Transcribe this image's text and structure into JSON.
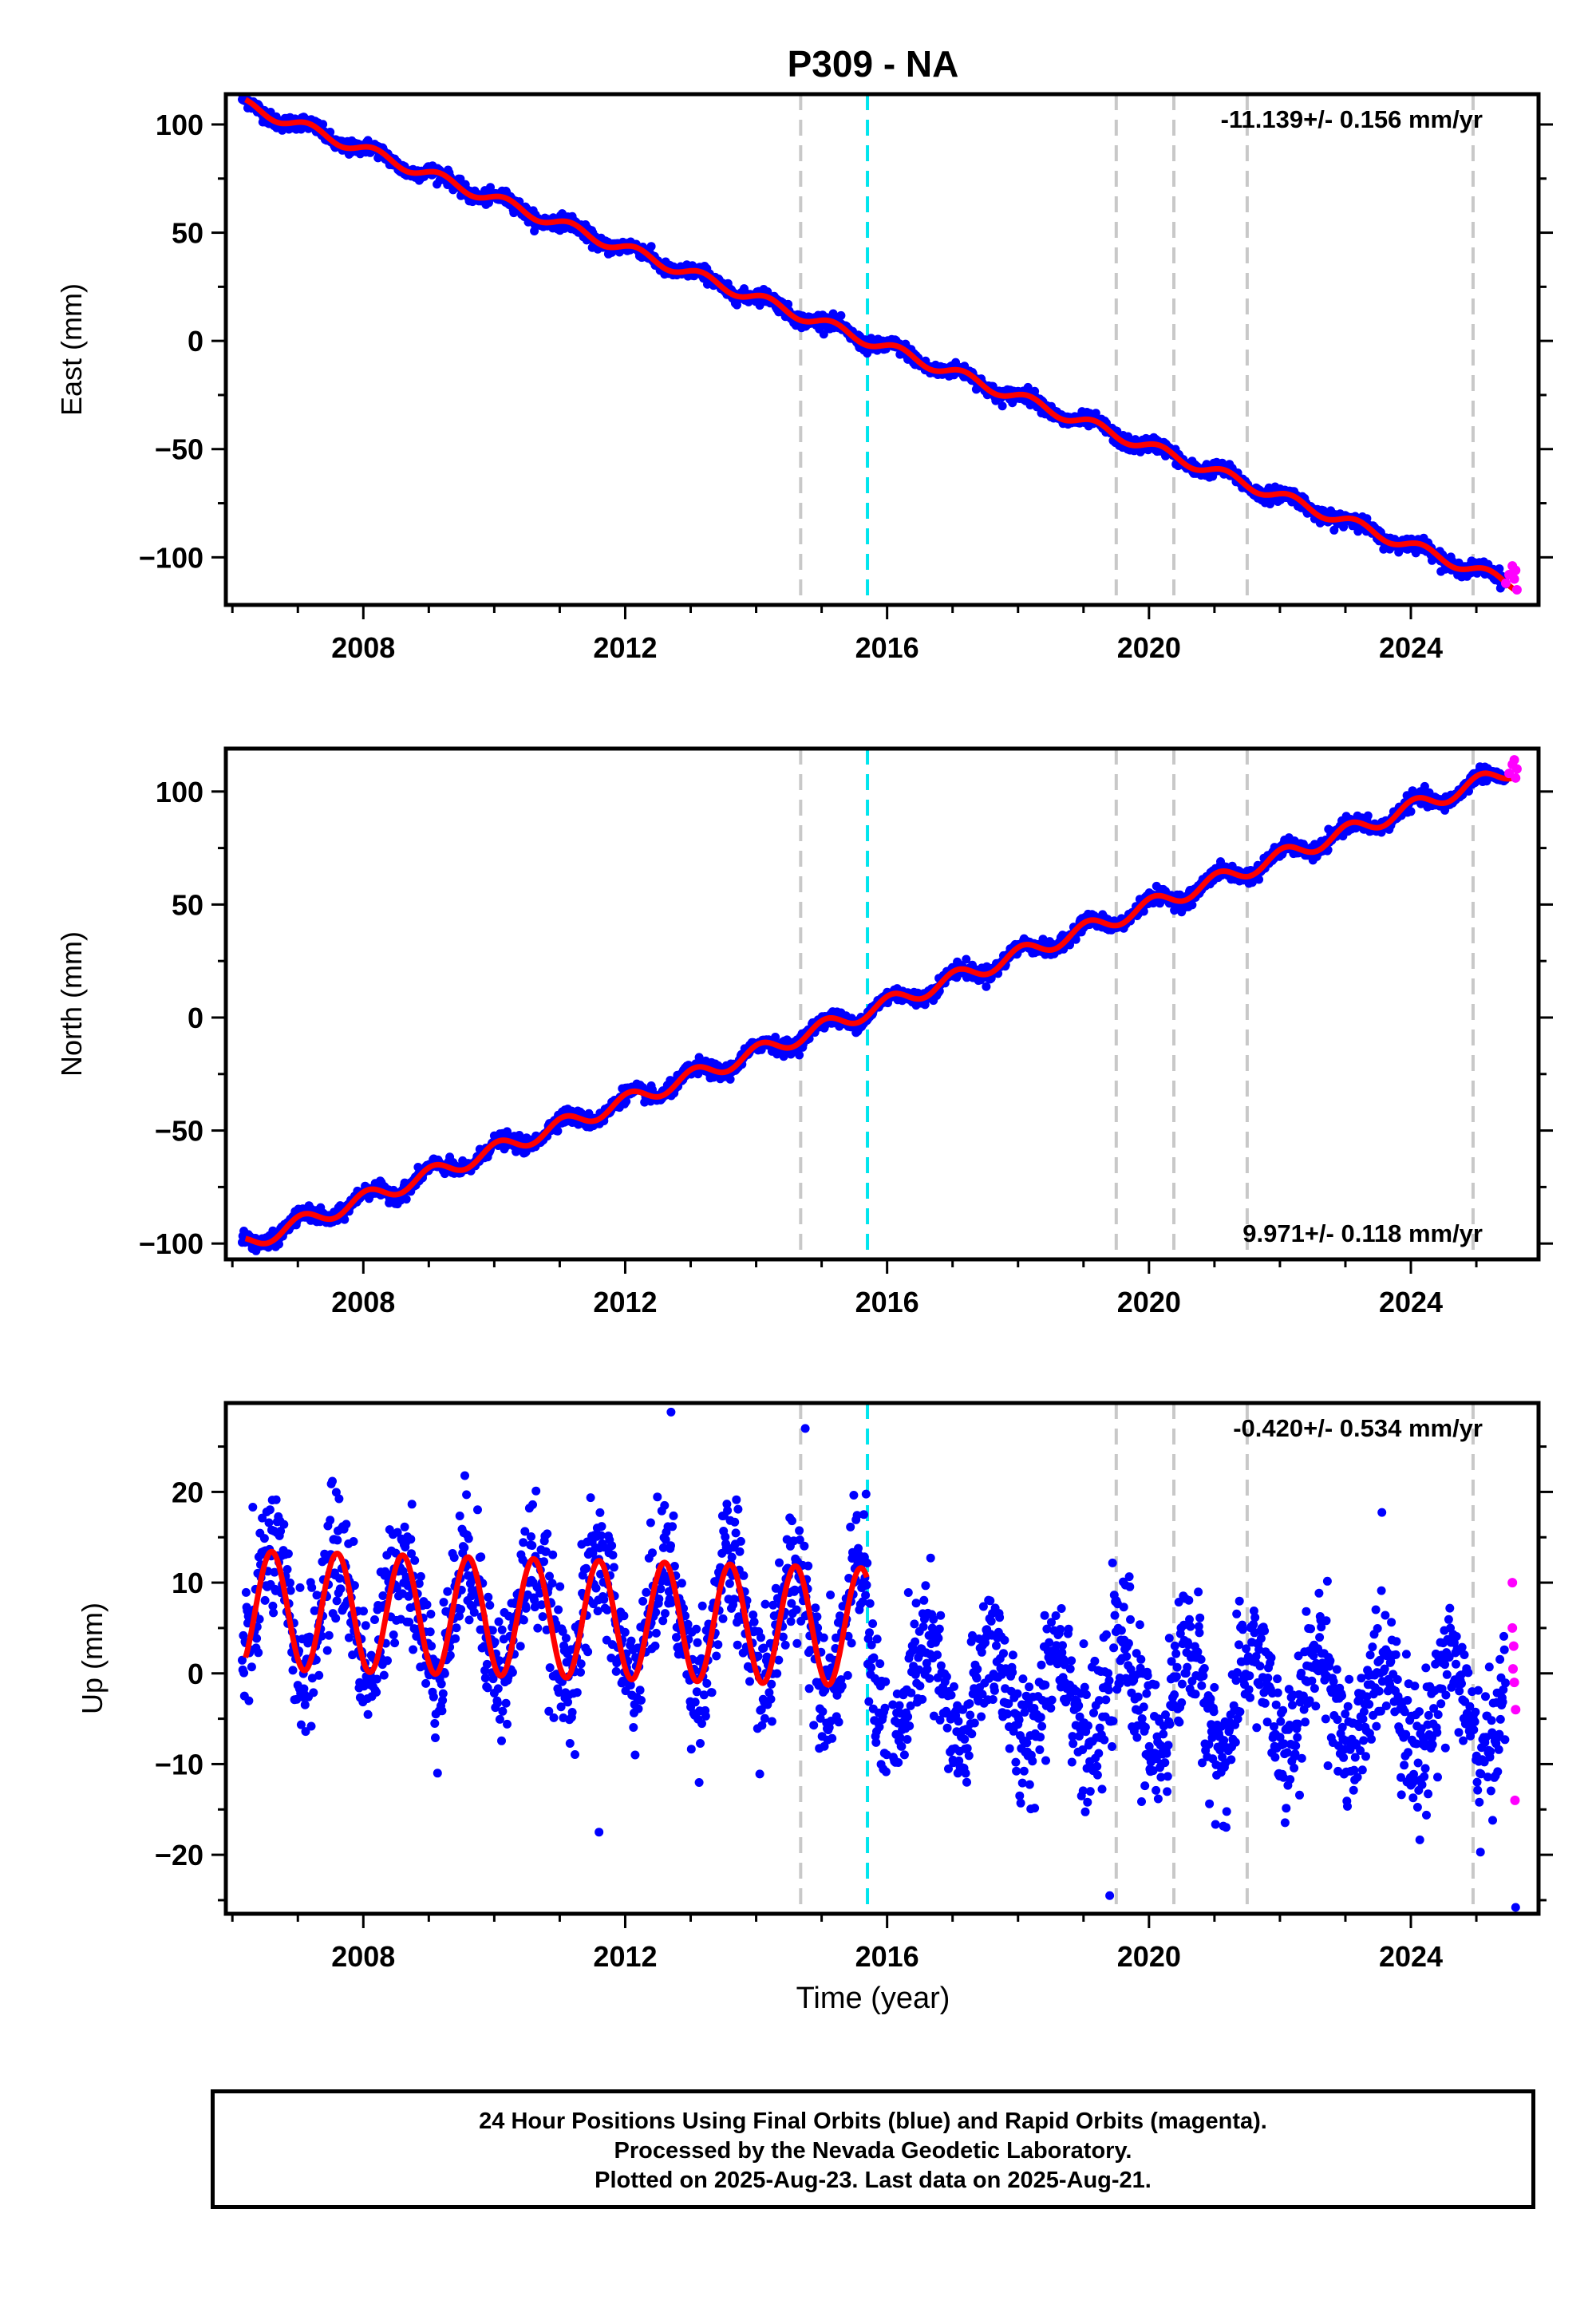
{
  "title": "P309 - NA",
  "x_axis_label": "Time (year)",
  "x_ticks": [
    2008,
    2012,
    2016,
    2020,
    2024
  ],
  "footer": {
    "line1": "24 Hour Positions Using Final Orbits (blue) and Rapid Orbits (magenta).",
    "line2": "Processed by the Nevada Geodetic Laboratory.",
    "line3": "Plotted on 2025-Aug-23. Last data on 2025-Aug-21."
  },
  "colors": {
    "final_orbits": "#0000ff",
    "rapid_orbits": "#ff00ff",
    "model_fit": "#ff0000",
    "equipment_change": "#c8c8c8",
    "earthquake": "#00e5ee"
  },
  "event_lines": {
    "equipment_change_years": [
      2014.68,
      2019.5,
      2020.38,
      2021.5,
      2024.95
    ],
    "earthquake_years": [
      2015.7
    ]
  },
  "chart_data": [
    {
      "type": "scatter",
      "ylabel": "East (mm)",
      "rate_label": "-11.139+/- 0.156 mm/yr",
      "rate_position": "top-right",
      "xlim": [
        2005.9,
        2025.95
      ],
      "ylim": [
        -122,
        114
      ],
      "y_ticks": [
        -100,
        -50,
        0,
        50,
        100
      ],
      "series": [
        {
          "values": {
            "rate_mm_per_yr": -11.139,
            "rate_sigma": 0.156,
            "start": [
              2006.2,
              109
            ],
            "end": [
              2025.6,
              -113
            ],
            "annual_amplitude_mm": 2.5
          }
        },
        {
          "values": [
            [
              2025.45,
              -112
            ],
            [
              2025.5,
              -108
            ],
            [
              2025.55,
              -104
            ],
            [
              2025.58,
              -110
            ],
            [
              2025.62,
              -115
            ],
            [
              2025.6,
              -106
            ]
          ]
        }
      ]
    },
    {
      "type": "scatter",
      "ylabel": "North (mm)",
      "rate_label": "9.971+/- 0.118 mm/yr",
      "rate_position": "bottom-right",
      "xlim": [
        2005.9,
        2025.95
      ],
      "ylim": [
        -107,
        119
      ],
      "y_ticks": [
        -100,
        -50,
        0,
        50,
        100
      ],
      "series": [
        {
          "values": {
            "rate_mm_per_yr": 9.971,
            "rate_sigma": 0.118,
            "start": [
              2006.2,
              -100
            ],
            "end": [
              2025.6,
              110
            ],
            "annual_amplitude_mm": 3.5
          }
        },
        {
          "values": [
            [
              2025.5,
              108
            ],
            [
              2025.55,
              112
            ],
            [
              2025.58,
              114
            ],
            [
              2025.62,
              110
            ],
            [
              2025.6,
              106
            ]
          ]
        }
      ]
    },
    {
      "type": "scatter",
      "ylabel": "Up (mm)",
      "rate_label": "-0.420+/- 0.534 mm/yr",
      "rate_position": "top-right",
      "xlim": [
        2005.9,
        2025.95
      ],
      "ylim": [
        -26.5,
        29.8
      ],
      "y_ticks": [
        -20,
        -10,
        0,
        10,
        20
      ],
      "series": [
        {
          "values": {
            "rate_mm_per_yr": -0.42,
            "rate_sigma": 0.534,
            "annual_amplitude_mm": 6.5,
            "offset_at_2015_7_mm": -9.5,
            "scatter_range_mm": [
              -25.8,
              28.8
            ]
          }
        },
        {
          "values": [
            [
              2025.55,
              10
            ],
            [
              2025.55,
              5
            ],
            [
              2025.57,
              3
            ],
            [
              2025.58,
              -1
            ],
            [
              2025.6,
              -4
            ],
            [
              2025.56,
              0.5
            ],
            [
              2025.59,
              -14
            ]
          ]
        }
      ]
    }
  ]
}
